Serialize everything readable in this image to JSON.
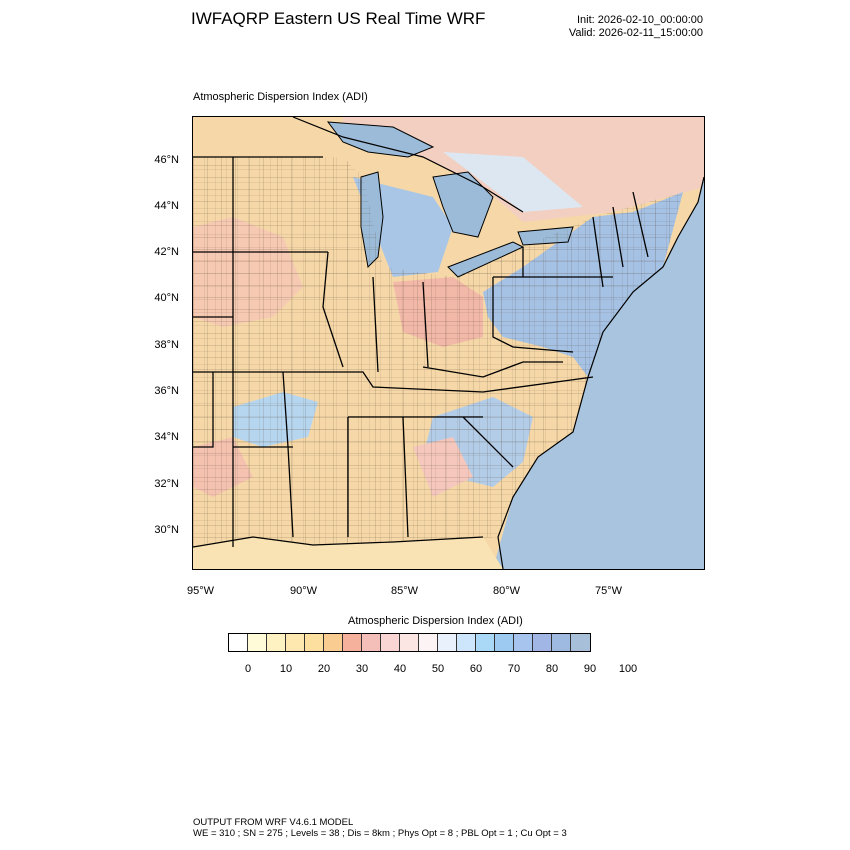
{
  "header": {
    "title": "IWFAQRP Eastern US Real Time WRF",
    "init": "Init: 2026-02-10_00:00:00",
    "valid": "Valid: 2026-02-11_15:00:00"
  },
  "map": {
    "field_label": "Atmospheric Dispersion Index   (ADI)",
    "lat_labels": [
      "46°N",
      "44°N",
      "42°N",
      "40°N",
      "38°N",
      "36°N",
      "34°N",
      "32°N",
      "30°N"
    ],
    "lon_labels": [
      "95°W",
      "90°W",
      "85°W",
      "80°W",
      "75°W"
    ],
    "colors": {
      "ocean": "#a9c4de",
      "low": "#f7d9a4",
      "mid": "#f3b9a2",
      "high": "#a3c6ec",
      "lake": "#9bbbd8",
      "land_canada": "#f0d5b8"
    }
  },
  "colorbar": {
    "title": "Atmospheric Dispersion Index  (ADI)",
    "labels": [
      "0",
      "10",
      "20",
      "30",
      "40",
      "50",
      "60",
      "70",
      "80",
      "90",
      "100"
    ],
    "colors": [
      "#ffffff",
      "#fffbd9",
      "#fff2c2",
      "#ffe8b0",
      "#fde0a0",
      "#f9cd92",
      "#f6b19c",
      "#f4bfb8",
      "#f9d5d3",
      "#fbe6e4",
      "#fcf3f4",
      "#e9f1fd",
      "#cde6fb",
      "#a9d9f6",
      "#9ccaf1",
      "#a7c4ee",
      "#a2b6e6",
      "#9fbae0",
      "#a7bfd8"
    ]
  },
  "footer": {
    "line1": "OUTPUT FROM WRF V4.6.1 MODEL",
    "line2": "WE = 310 ; SN = 275 ; Levels = 38 ; Dis = 8km ; Phys Opt = 8 ; PBL Opt = 1 ; Cu Opt = 3"
  }
}
